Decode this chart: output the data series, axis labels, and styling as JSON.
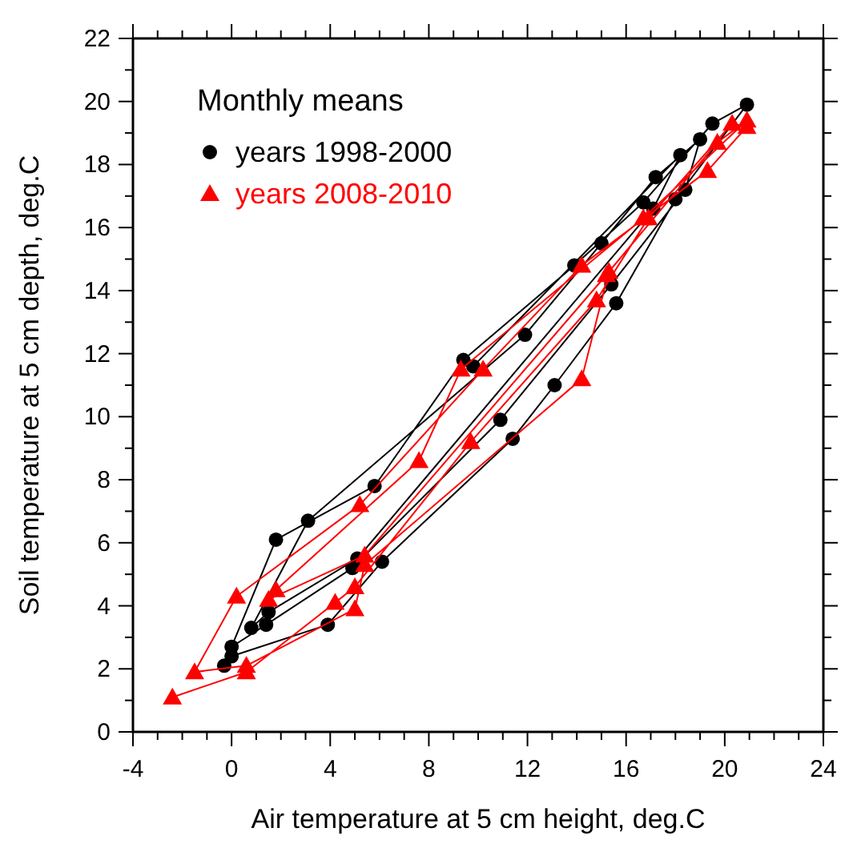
{
  "chart_data": {
    "type": "line",
    "xlabel": "Air temperature at 5 cm height, deg.C",
    "ylabel": "Soil temperature at 5 cm depth, deg.C",
    "legend_title": "Monthly means",
    "legend": "top left",
    "grid": false,
    "line_style": "solid",
    "xlim": [
      -4,
      24
    ],
    "ylim": [
      0,
      22
    ],
    "xticks": [
      -4,
      {
        "value": -3,
        "label": null
      },
      {
        "value": -2,
        "label": null
      },
      {
        "value": -1,
        "label": null
      },
      0,
      {
        "value": 1,
        "label": null
      },
      {
        "value": 2,
        "label": null
      },
      {
        "value": 3,
        "label": null
      },
      4,
      {
        "value": 5,
        "label": null
      },
      {
        "value": 6,
        "label": null
      },
      {
        "value": 7,
        "label": null
      },
      8,
      {
        "value": 9,
        "label": null
      },
      {
        "value": 10,
        "label": null
      },
      {
        "value": 11,
        "label": null
      },
      12,
      {
        "value": 13,
        "label": null
      },
      {
        "value": 14,
        "label": null
      },
      {
        "value": 15,
        "label": null
      },
      16,
      {
        "value": 17,
        "label": null
      },
      {
        "value": 18,
        "label": null
      },
      {
        "value": 19,
        "label": null
      },
      20,
      {
        "value": 21,
        "label": null
      },
      {
        "value": 22,
        "label": null
      },
      {
        "value": 23,
        "label": null
      },
      24
    ],
    "yticks": [
      0,
      {
        "value": 1,
        "label": null
      },
      2,
      {
        "value": 3,
        "label": null
      },
      4,
      {
        "value": 5,
        "label": null
      },
      6,
      {
        "value": 7,
        "label": null
      },
      8,
      {
        "value": 9,
        "label": null
      },
      10,
      {
        "value": 11,
        "label": null
      },
      12,
      {
        "value": 13,
        "label": null
      },
      14,
      {
        "value": 15,
        "label": null
      },
      16,
      {
        "value": 17,
        "label": null
      },
      18,
      {
        "value": 19,
        "label": null
      },
      20,
      {
        "value": 21,
        "label": null
      },
      22
    ],
    "series": [
      {
        "name": "years 1998-2000",
        "color": "#000000",
        "marker": "circle",
        "x": [
          -0.3,
          0.0,
          3.9,
          6.1,
          11.4,
          13.1,
          15.6,
          18.0,
          20.9,
          19.5,
          16.7,
          13.9,
          9.4,
          5.8,
          1.8,
          0.0,
          1.4,
          4.9,
          10.9,
          15.4,
          18.4,
          19.0,
          17.2,
          15.0,
          11.9,
          3.1,
          0.8,
          1.5,
          5.1,
          17.1,
          18.2,
          9.8
        ],
        "values": [
          2.1,
          2.4,
          3.4,
          5.4,
          9.3,
          11.0,
          13.6,
          16.9,
          19.9,
          19.3,
          16.8,
          14.8,
          11.8,
          7.8,
          6.1,
          2.7,
          3.4,
          5.2,
          9.9,
          14.2,
          17.2,
          18.8,
          17.6,
          15.5,
          12.6,
          6.7,
          3.3,
          3.8,
          5.5,
          16.6,
          18.3,
          11.6
        ]
      },
      {
        "name": "years 2008-2010",
        "color": "#ff0000",
        "marker": "triangle",
        "x": [
          -2.4,
          0.6,
          4.2,
          5.0,
          9.7,
          14.8,
          16.9,
          20.3,
          20.9,
          19.3,
          14.2,
          10.2,
          5.2,
          0.2,
          -1.5,
          0.6,
          5.0,
          5.4,
          14.2,
          15.3,
          19.7,
          20.9,
          16.7,
          9.3,
          7.6,
          1.8,
          1.5,
          5.4,
          15.2
        ],
        "values": [
          1.1,
          1.9,
          4.1,
          4.6,
          9.2,
          13.7,
          16.3,
          19.3,
          19.2,
          17.8,
          14.8,
          11.5,
          7.2,
          4.3,
          1.9,
          2.1,
          3.9,
          5.3,
          11.2,
          14.6,
          18.7,
          19.4,
          16.3,
          11.5,
          8.6,
          4.5,
          4.2,
          5.6,
          14.5
        ]
      }
    ]
  }
}
